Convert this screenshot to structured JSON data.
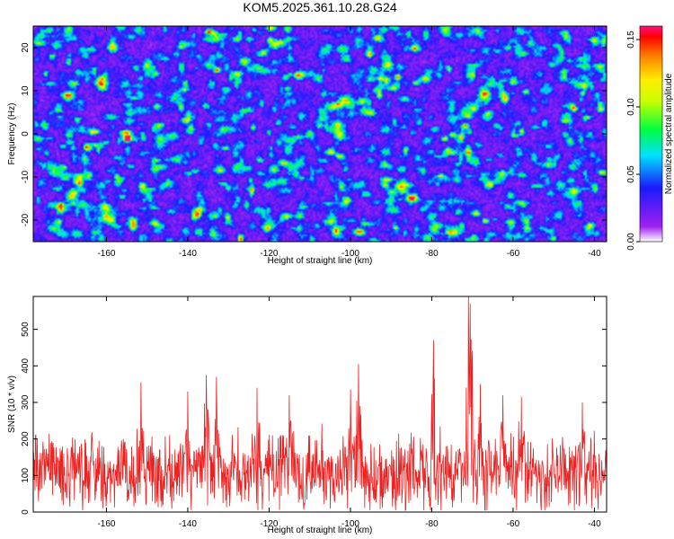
{
  "chart_data": [
    {
      "type": "heatmap",
      "title": "KOM5.2025.361.10.28.G24",
      "xlabel": "Height of straight line (km)",
      "ylabel": "Frequency (Hz)",
      "xlim": [
        -178,
        -37
      ],
      "ylim": [
        -25,
        25
      ],
      "xticks": [
        -160,
        -140,
        -120,
        -100,
        -80,
        -60,
        -40
      ],
      "yticks": [
        -20,
        -10,
        0,
        10,
        20
      ],
      "colorbar": {
        "label": "Normalized spectral amplitude",
        "range": [
          0,
          0.16
        ],
        "ticks": [
          "0.00",
          "0.05",
          "0.10",
          "0.15"
        ]
      },
      "peaks": [
        {
          "x": -155,
          "y": -1,
          "z": 0.16
        },
        {
          "x": -135,
          "y": 24,
          "z": 0.13
        },
        {
          "x": -133,
          "y": 15,
          "z": 0.12
        },
        {
          "x": -77,
          "y": -1,
          "z": 0.1
        },
        {
          "x": -75,
          "y": 0,
          "z": 0.09
        },
        {
          "x": -72,
          "y": 2,
          "z": 0.11
        },
        {
          "x": -120,
          "y": 22,
          "z": 0.08
        },
        {
          "x": -84,
          "y": 12,
          "z": 0.08
        },
        {
          "x": -57,
          "y": 10,
          "z": 0.08
        },
        {
          "x": -45,
          "y": 6,
          "z": 0.08
        },
        {
          "x": -67,
          "y": -20,
          "z": 0.09
        },
        {
          "x": -148,
          "y": 14,
          "z": 0.07
        },
        {
          "x": -103,
          "y": -5,
          "z": 0.07
        },
        {
          "x": -41,
          "y": -21,
          "z": 0.07
        },
        {
          "x": -165,
          "y": -3,
          "z": 0.07
        },
        {
          "x": -140,
          "y": -9,
          "z": 0.06
        },
        {
          "x": -95,
          "y": 5,
          "z": 0.06
        }
      ],
      "background_level": 0.025
    },
    {
      "type": "line",
      "xlabel": "Height of straight line (km)",
      "ylabel": "SNR (10 * v/v)",
      "xlim": [
        -178,
        -37
      ],
      "ylim": [
        0,
        590
      ],
      "xticks": [
        -160,
        -140,
        -120,
        -100,
        -80,
        -60,
        -40
      ],
      "yticks": [
        0,
        100,
        200,
        300,
        400,
        500
      ],
      "series": [
        {
          "name": "SNR",
          "color": "#ee2020",
          "baseline": 110,
          "noise_amplitude": 95,
          "peaks": [
            {
              "x": -71,
              "y": 590
            },
            {
              "x": -70.5,
              "y": 570
            },
            {
              "x": -79.5,
              "y": 470
            },
            {
              "x": -98,
              "y": 405
            },
            {
              "x": -135.5,
              "y": 375
            },
            {
              "x": -133,
              "y": 370
            },
            {
              "x": -151.5,
              "y": 355
            },
            {
              "x": -123,
              "y": 340
            },
            {
              "x": -115,
              "y": 320
            },
            {
              "x": -68,
              "y": 350
            },
            {
              "x": -62.5,
              "y": 320
            },
            {
              "x": -58,
              "y": 315
            },
            {
              "x": -43,
              "y": 300
            },
            {
              "x": -140,
              "y": 330
            },
            {
              "x": -100,
              "y": 335
            }
          ]
        }
      ]
    }
  ]
}
